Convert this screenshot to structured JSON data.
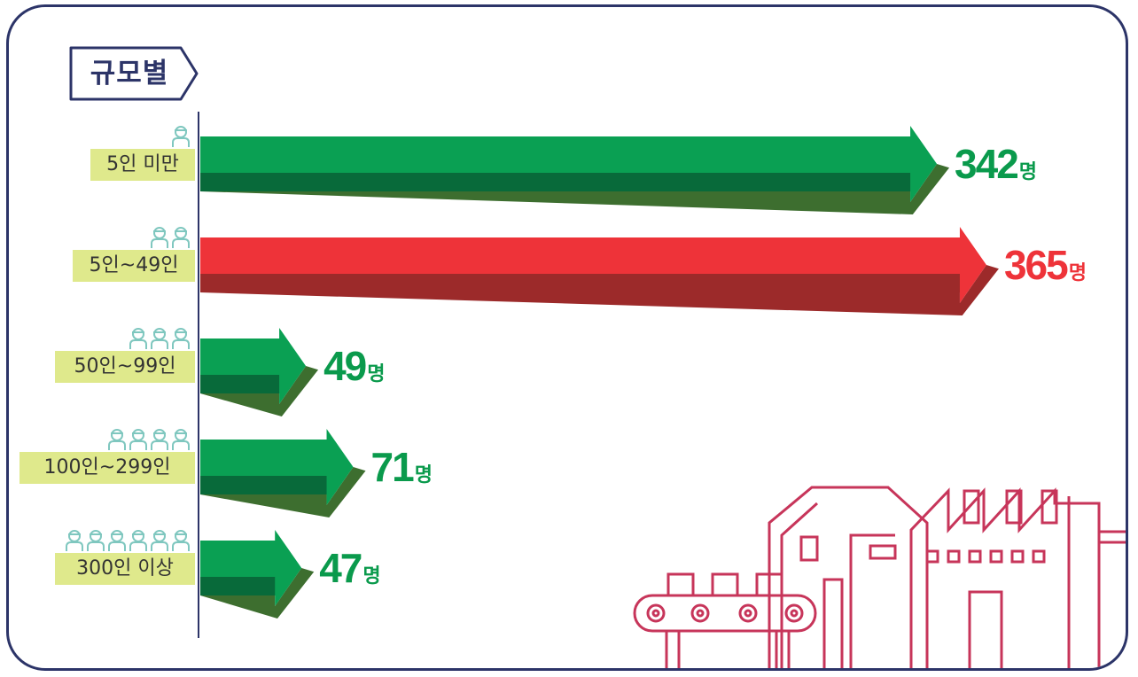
{
  "title": "규모별",
  "colors": {
    "frame": "#2c3468",
    "bar": "#0aa053",
    "bar_dark": "#086a3a",
    "bar_highlight": "#ee3339",
    "bar_highlight_dark": "#9c2a2a",
    "value_green": "#0a9a4c",
    "value_red": "#ee3339",
    "label_bg": "#dfe98c",
    "people_icon": "#7fc7bf",
    "factory": "#c7355a"
  },
  "chart_data": {
    "type": "bar",
    "orientation": "horizontal",
    "categories": [
      "5인 미만",
      "5인~49인",
      "50인~99인",
      "100인~299인",
      "300인 이상"
    ],
    "values": [
      342,
      365,
      49,
      71,
      47
    ],
    "value_labels": [
      "342",
      "365",
      "49",
      "71",
      "47"
    ],
    "unit": "명",
    "people_icons": [
      1,
      2,
      3,
      4,
      6
    ],
    "highlight_index": 1
  }
}
